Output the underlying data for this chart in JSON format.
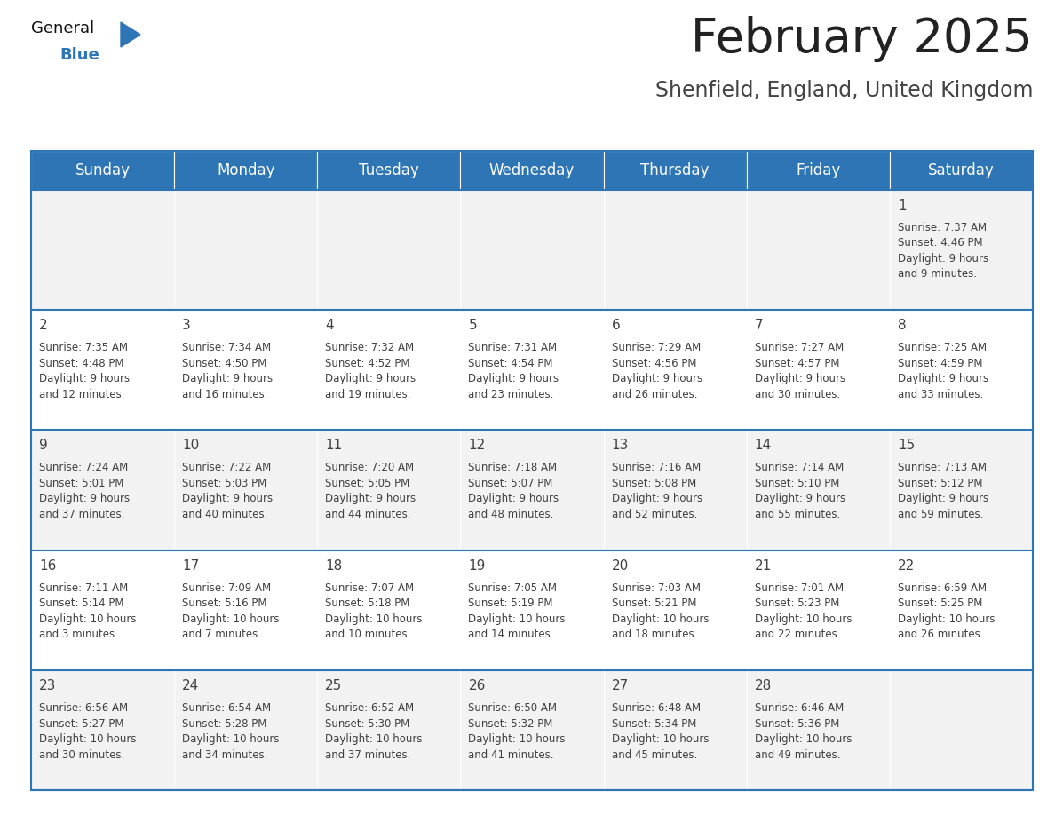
{
  "title": "February 2025",
  "subtitle": "Shenfield, England, United Kingdom",
  "days_of_week": [
    "Sunday",
    "Monday",
    "Tuesday",
    "Wednesday",
    "Thursday",
    "Friday",
    "Saturday"
  ],
  "header_bg": "#2e75b6",
  "header_text": "#ffffff",
  "cell_bg_even": "#f2f2f2",
  "cell_bg_odd": "#ffffff",
  "divider_color": "#2e75b6",
  "text_color": "#404040",
  "day_num_color": "#404040",
  "calendar_data": [
    [
      {
        "day": null,
        "info": null
      },
      {
        "day": null,
        "info": null
      },
      {
        "day": null,
        "info": null
      },
      {
        "day": null,
        "info": null
      },
      {
        "day": null,
        "info": null
      },
      {
        "day": null,
        "info": null
      },
      {
        "day": 1,
        "info": "Sunrise: 7:37 AM\nSunset: 4:46 PM\nDaylight: 9 hours\nand 9 minutes."
      }
    ],
    [
      {
        "day": 2,
        "info": "Sunrise: 7:35 AM\nSunset: 4:48 PM\nDaylight: 9 hours\nand 12 minutes."
      },
      {
        "day": 3,
        "info": "Sunrise: 7:34 AM\nSunset: 4:50 PM\nDaylight: 9 hours\nand 16 minutes."
      },
      {
        "day": 4,
        "info": "Sunrise: 7:32 AM\nSunset: 4:52 PM\nDaylight: 9 hours\nand 19 minutes."
      },
      {
        "day": 5,
        "info": "Sunrise: 7:31 AM\nSunset: 4:54 PM\nDaylight: 9 hours\nand 23 minutes."
      },
      {
        "day": 6,
        "info": "Sunrise: 7:29 AM\nSunset: 4:56 PM\nDaylight: 9 hours\nand 26 minutes."
      },
      {
        "day": 7,
        "info": "Sunrise: 7:27 AM\nSunset: 4:57 PM\nDaylight: 9 hours\nand 30 minutes."
      },
      {
        "day": 8,
        "info": "Sunrise: 7:25 AM\nSunset: 4:59 PM\nDaylight: 9 hours\nand 33 minutes."
      }
    ],
    [
      {
        "day": 9,
        "info": "Sunrise: 7:24 AM\nSunset: 5:01 PM\nDaylight: 9 hours\nand 37 minutes."
      },
      {
        "day": 10,
        "info": "Sunrise: 7:22 AM\nSunset: 5:03 PM\nDaylight: 9 hours\nand 40 minutes."
      },
      {
        "day": 11,
        "info": "Sunrise: 7:20 AM\nSunset: 5:05 PM\nDaylight: 9 hours\nand 44 minutes."
      },
      {
        "day": 12,
        "info": "Sunrise: 7:18 AM\nSunset: 5:07 PM\nDaylight: 9 hours\nand 48 minutes."
      },
      {
        "day": 13,
        "info": "Sunrise: 7:16 AM\nSunset: 5:08 PM\nDaylight: 9 hours\nand 52 minutes."
      },
      {
        "day": 14,
        "info": "Sunrise: 7:14 AM\nSunset: 5:10 PM\nDaylight: 9 hours\nand 55 minutes."
      },
      {
        "day": 15,
        "info": "Sunrise: 7:13 AM\nSunset: 5:12 PM\nDaylight: 9 hours\nand 59 minutes."
      }
    ],
    [
      {
        "day": 16,
        "info": "Sunrise: 7:11 AM\nSunset: 5:14 PM\nDaylight: 10 hours\nand 3 minutes."
      },
      {
        "day": 17,
        "info": "Sunrise: 7:09 AM\nSunset: 5:16 PM\nDaylight: 10 hours\nand 7 minutes."
      },
      {
        "day": 18,
        "info": "Sunrise: 7:07 AM\nSunset: 5:18 PM\nDaylight: 10 hours\nand 10 minutes."
      },
      {
        "day": 19,
        "info": "Sunrise: 7:05 AM\nSunset: 5:19 PM\nDaylight: 10 hours\nand 14 minutes."
      },
      {
        "day": 20,
        "info": "Sunrise: 7:03 AM\nSunset: 5:21 PM\nDaylight: 10 hours\nand 18 minutes."
      },
      {
        "day": 21,
        "info": "Sunrise: 7:01 AM\nSunset: 5:23 PM\nDaylight: 10 hours\nand 22 minutes."
      },
      {
        "day": 22,
        "info": "Sunrise: 6:59 AM\nSunset: 5:25 PM\nDaylight: 10 hours\nand 26 minutes."
      }
    ],
    [
      {
        "day": 23,
        "info": "Sunrise: 6:56 AM\nSunset: 5:27 PM\nDaylight: 10 hours\nand 30 minutes."
      },
      {
        "day": 24,
        "info": "Sunrise: 6:54 AM\nSunset: 5:28 PM\nDaylight: 10 hours\nand 34 minutes."
      },
      {
        "day": 25,
        "info": "Sunrise: 6:52 AM\nSunset: 5:30 PM\nDaylight: 10 hours\nand 37 minutes."
      },
      {
        "day": 26,
        "info": "Sunrise: 6:50 AM\nSunset: 5:32 PM\nDaylight: 10 hours\nand 41 minutes."
      },
      {
        "day": 27,
        "info": "Sunrise: 6:48 AM\nSunset: 5:34 PM\nDaylight: 10 hours\nand 45 minutes."
      },
      {
        "day": 28,
        "info": "Sunrise: 6:46 AM\nSunset: 5:36 PM\nDaylight: 10 hours\nand 49 minutes."
      },
      {
        "day": null,
        "info": null
      }
    ]
  ],
  "title_fontsize": 38,
  "subtitle_fontsize": 17,
  "header_fontsize": 12,
  "day_num_fontsize": 11,
  "info_fontsize": 8.5,
  "logo_general_fontsize": 13,
  "logo_blue_fontsize": 13
}
